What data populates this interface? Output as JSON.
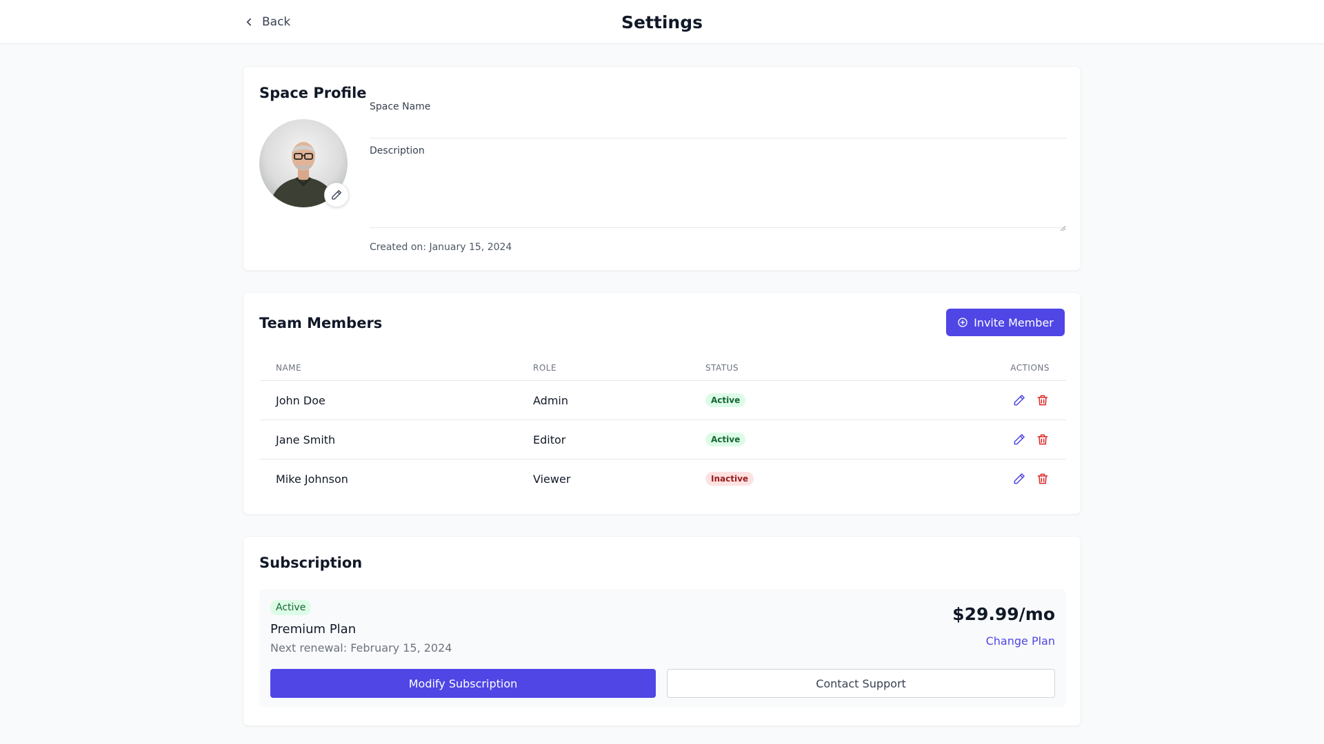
{
  "header": {
    "back_label": "Back",
    "title": "Settings"
  },
  "profile": {
    "section_title": "Space Profile",
    "space_name_label": "Space Name",
    "space_name_value": "",
    "description_label": "Description",
    "description_value": "",
    "created_text": "Created on: January 15, 2024"
  },
  "team": {
    "section_title": "Team Members",
    "invite_label": "Invite Member",
    "columns": {
      "name": "NAME",
      "role": "ROLE",
      "status": "STATUS",
      "actions": "ACTIONS"
    },
    "members": [
      {
        "name": "John Doe",
        "role": "Admin",
        "status": "Active"
      },
      {
        "name": "Jane Smith",
        "role": "Editor",
        "status": "Active"
      },
      {
        "name": "Mike Johnson",
        "role": "Viewer",
        "status": "Inactive"
      }
    ]
  },
  "subscription": {
    "section_title": "Subscription",
    "status_badge": "Active",
    "plan_name": "Premium Plan",
    "renewal_text": "Next renewal: February 15, 2024",
    "price": "$29.99/mo",
    "change_plan_label": "Change Plan",
    "modify_label": "Modify Subscription",
    "support_label": "Contact Support"
  },
  "colors": {
    "accent": "#4f46e5",
    "danger": "#dc2626",
    "success_bg": "#dcfce7",
    "success_text": "#166534",
    "inactive_bg": "#fee2e2",
    "inactive_text": "#991b1b"
  },
  "icons": {
    "back": "chevron-left-icon",
    "avatar_edit": "pencil-icon",
    "invite": "plus-circle-icon",
    "row_edit": "pencil-icon",
    "row_delete": "trash-icon"
  }
}
